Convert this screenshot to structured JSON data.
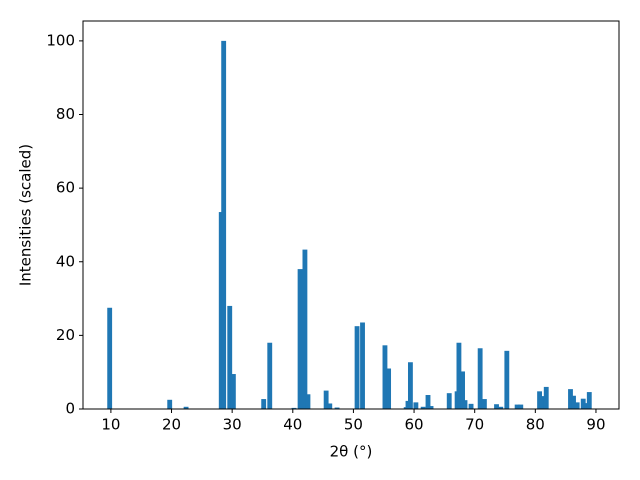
{
  "chart_data": {
    "type": "bar",
    "xlabel": "2θ (°)",
    "ylabel": "Intensities (scaled)",
    "color": "#1f77b4",
    "x": [
      9.8,
      19.7,
      22.4,
      28.2,
      28.6,
      29.6,
      30.2,
      35.2,
      36.2,
      40.2,
      41.2,
      42.0,
      42.5,
      45.5,
      46.1,
      47.3,
      50.6,
      51.5,
      55.2,
      55.8,
      58.7,
      59.0,
      59.4,
      60.3,
      61.5,
      62.3,
      62.8,
      65.8,
      67.1,
      67.4,
      68.0,
      68.4,
      69.4,
      70.9,
      71.6,
      73.6,
      74.3,
      75.3,
      77.0,
      77.6,
      80.7,
      81.1,
      81.8,
      85.8,
      86.3,
      86.9,
      87.9,
      88.5,
      88.9
    ],
    "values": [
      27.5,
      2.5,
      0.6,
      53.5,
      100,
      28,
      9.5,
      2.7,
      18,
      0.3,
      38,
      43.3,
      4,
      5,
      1.5,
      0.4,
      22.5,
      23.5,
      17.3,
      11,
      0.5,
      2.2,
      12.7,
      1.8,
      0.6,
      3.8,
      0.8,
      4.3,
      4.8,
      18,
      10.2,
      2.4,
      1.4,
      16.5,
      2.7,
      1.3,
      0.6,
      15.8,
      1.2,
      1.2,
      4.8,
      3.5,
      6,
      5.4,
      3.6,
      1.8,
      2.8,
      1.6,
      4.6
    ],
    "xlim": [
      5.4,
      93.8
    ],
    "ylim": [
      0,
      105.4
    ],
    "xticks": [
      10,
      20,
      30,
      40,
      50,
      60,
      70,
      80,
      90
    ],
    "yticks": [
      0,
      20,
      40,
      60,
      80,
      100
    ]
  }
}
